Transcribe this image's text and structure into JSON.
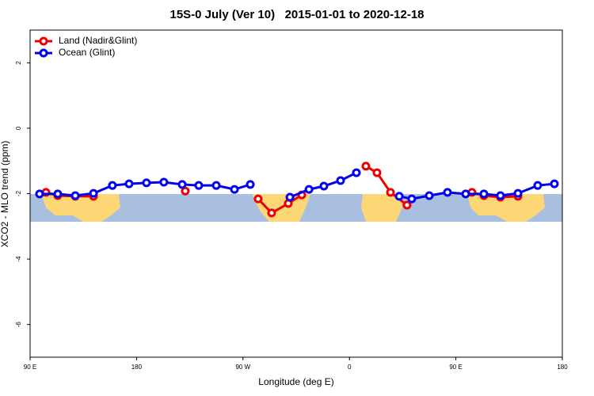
{
  "chart_data": {
    "type": "line",
    "title": "15S-0 July (Ver 10)   2015-01-01 to 2020-12-18",
    "x_label": "Longitude (deg E)",
    "y_label": "XCO2 - MLO trend (ppm)",
    "xlim": [
      90,
      540
    ],
    "ylim": [
      -7,
      3
    ],
    "xticks": [
      {
        "value": 90,
        "label": "90 E"
      },
      180,
      {
        "value": 270,
        "label": "90 W"
      },
      {
        "value": 360,
        "label": "0"
      },
      {
        "value": 450,
        "label": "90 E"
      },
      {
        "value": 540,
        "label": "180"
      }
    ],
    "yticks": [
      -6,
      -4,
      -2,
      0,
      2
    ],
    "legend": "top-left",
    "series": [
      {
        "name": "Land (Nadir&Glint)",
        "color": "#ee0000",
        "x": [
          103.4,
          113.4,
          128.2,
          143.6,
          null,
          221.2,
          null,
          282.8,
          294.2,
          308.3,
          319.7,
          null,
          373.9,
          383.3,
          394.7,
          408.7,
          null,
          463.6,
          473.7,
          487.7,
          502.5
        ],
        "values": [
          -1.96,
          -2.06,
          -2.08,
          -2.08,
          null,
          -1.92,
          null,
          -2.16,
          -2.59,
          -2.3,
          -2.04,
          null,
          -1.16,
          -1.36,
          -1.96,
          -2.35,
          null,
          -1.96,
          -2.06,
          -2.11,
          -2.08
        ]
      },
      {
        "name": "Ocean (Glint)",
        "color": "#0000ee",
        "x": [
          98.0,
          113.4,
          128.2,
          143.6,
          159.6,
          173.7,
          188.4,
          203.1,
          218.6,
          232.6,
          247.4,
          262.8,
          276.2,
          null,
          309.7,
          325.8,
          338.4,
          352.5,
          365.9,
          null,
          402.1,
          412.7,
          427.5,
          442.9,
          458.3,
          473.7,
          487.7,
          502.5,
          519.2,
          533.3
        ],
        "values": [
          -2.01,
          -2.01,
          -2.06,
          -1.99,
          -1.75,
          -1.7,
          -1.67,
          -1.65,
          -1.72,
          -1.75,
          -1.75,
          -1.87,
          -1.72,
          null,
          -2.11,
          -1.87,
          -1.77,
          -1.6,
          -1.36,
          null,
          -2.08,
          -2.16,
          -2.06,
          -1.96,
          -2.01,
          -2.01,
          -2.06,
          -1.99,
          -1.75,
          -1.7
        ]
      }
    ]
  }
}
